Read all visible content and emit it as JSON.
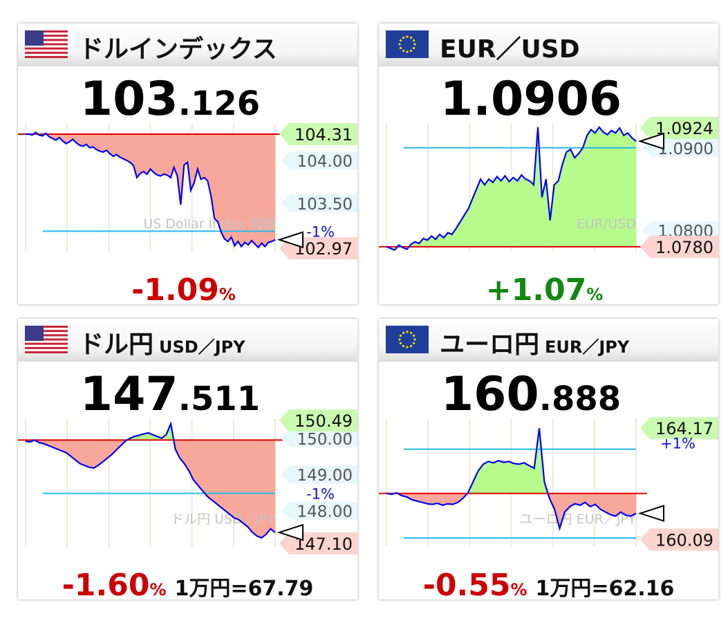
{
  "panels": [
    {
      "title": "ドルインデックス",
      "pair": "",
      "flag": "us",
      "price_big": "103",
      "price_small": ".126",
      "change_num": "-1.09",
      "change_pct": "%",
      "change_dir": "neg",
      "unit_text": "",
      "watermark": "US Dollar Index 現物",
      "fill_mode": "below",
      "colors": {
        "fill": "#f8a89a",
        "line": "#0000ee",
        "ref": "#dd0000"
      },
      "chart_data": {
        "type": "area",
        "title": "ドルインデックス",
        "ylim": [
          102.93,
          104.44
        ],
        "y": [
          104.31,
          104.31,
          104.3,
          104.33,
          104.3,
          104.29,
          104.32,
          104.28,
          104.26,
          104.24,
          104.27,
          104.23,
          104.2,
          104.22,
          104.25,
          104.21,
          104.18,
          104.17,
          104.19,
          104.15,
          104.16,
          104.13,
          104.11,
          104.1,
          104.12,
          104.08,
          104.05,
          104.07,
          104.04,
          104.02,
          104.0,
          103.98,
          103.94,
          103.8,
          103.85,
          103.87,
          103.84,
          103.9,
          103.86,
          103.83,
          103.82,
          103.84,
          103.83,
          103.8,
          103.92,
          103.82,
          103.48,
          103.95,
          103.98,
          103.65,
          103.74,
          103.9,
          103.78,
          103.8,
          103.76,
          103.58,
          103.32,
          103.28,
          103.16,
          103.08,
          103.05,
          103.1,
          103.0,
          103.05,
          102.99,
          103.04,
          103.01,
          103.06,
          103.02,
          102.98,
          103.03,
          102.99,
          103.04,
          103.05,
          103.07
        ],
        "ref_lines": [
          104.31
        ],
        "pct_lines": [
          {
            "label": "-1%",
            "value": 103.17
          }
        ],
        "tick_labels": [
          {
            "text": "104.00",
            "value": 104.0
          },
          {
            "text": "103.50",
            "value": 103.5
          }
        ],
        "labels": {
          "high": "104.31",
          "low": "102.97",
          "marker": "-1%"
        }
      }
    },
    {
      "title": "EUR／USD",
      "pair": "",
      "flag": "eu",
      "price_big": "1.0906",
      "price_small": "",
      "change_num": "+1.07",
      "change_pct": "%",
      "change_dir": "pos",
      "unit_text": "",
      "watermark": "EUR/USD",
      "fill_mode": "above",
      "colors": {
        "fill": "#b6fb8c",
        "line": "#0000ee",
        "ref": "#dd0000"
      },
      "chart_data": {
        "type": "area",
        "title": "EUR／USD",
        "ylim": [
          1.0774,
          1.093
        ],
        "y": [
          1.078,
          1.0778,
          1.0776,
          1.0782,
          1.0779,
          1.0777,
          1.0783,
          1.0786,
          1.0784,
          1.079,
          1.0788,
          1.0793,
          1.0789,
          1.0795,
          1.0791,
          1.0797,
          1.0795,
          1.0802,
          1.081,
          1.0818,
          1.0826,
          1.0838,
          1.085,
          1.0862,
          1.0855,
          1.0862,
          1.0858,
          1.0865,
          1.086,
          1.0866,
          1.0859,
          1.0864,
          1.086,
          1.0867,
          1.0862,
          1.086,
          1.0855,
          1.0925,
          1.084,
          1.0862,
          1.0812,
          1.0855,
          1.086,
          1.088,
          1.0895,
          1.0898,
          1.0888,
          1.0893,
          1.09,
          1.0915,
          1.0922,
          1.0918,
          1.0925,
          1.0919,
          1.0916,
          1.0921,
          1.0918,
          1.0924,
          1.0915,
          1.0918,
          1.0912,
          1.0908
        ],
        "ref_lines": [
          1.078
        ],
        "pct_lines": [
          {
            "label": "",
            "value": 1.09
          }
        ],
        "tick_labels": [
          {
            "text": "1.0900",
            "value": 1.09
          },
          {
            "text": "1.0800",
            "value": 1.08
          }
        ],
        "labels": {
          "high": "1.0924",
          "low": "1.0780",
          "marker": ""
        }
      }
    },
    {
      "title": "ドル円",
      "pair": "USD／JPY",
      "flag": "us",
      "price_big": "147",
      "price_small": ".511",
      "change_num": "-1.60",
      "change_pct": "%",
      "change_dir": "neg",
      "unit_text": "1万円=67.79",
      "watermark": "ドル円 USD／JPY",
      "fill_mode": "both",
      "colors": {
        "fill_up": "#b6fb8c",
        "fill_down": "#f8a89a",
        "line": "#0000ee",
        "ref": "#dd0000"
      },
      "chart_data": {
        "type": "area",
        "title": "ドル円",
        "ylim": [
          147.0,
          150.55
        ],
        "y": [
          149.92,
          149.9,
          149.95,
          149.88,
          149.85,
          149.8,
          149.75,
          149.7,
          149.65,
          149.6,
          149.5,
          149.4,
          149.3,
          149.25,
          149.2,
          149.18,
          149.25,
          149.35,
          149.45,
          149.55,
          149.68,
          149.8,
          149.92,
          150.0,
          150.05,
          150.08,
          150.12,
          150.15,
          150.1,
          150.05,
          150.0,
          150.1,
          150.4,
          149.7,
          149.45,
          149.3,
          149.1,
          148.85,
          148.7,
          148.55,
          148.4,
          148.3,
          148.2,
          148.1,
          148.0,
          147.9,
          147.8,
          147.75,
          147.65,
          147.55,
          147.4,
          147.3,
          147.25,
          147.35,
          147.5,
          147.4
        ],
        "ref_lines": [
          149.95
        ],
        "pct_lines": [
          {
            "label": "-1%",
            "value": 148.48
          }
        ],
        "tick_labels": [
          {
            "text": "150.00",
            "value": 150.0
          },
          {
            "text": "149.00",
            "value": 149.0
          },
          {
            "text": "148.00",
            "value": 148.0
          }
        ],
        "labels": {
          "high": "150.49",
          "low": "147.10",
          "marker": "-1%"
        }
      }
    },
    {
      "title": "ユーロ円",
      "pair": "EUR／JPY",
      "flag": "eu",
      "price_big": "160",
      "price_small": ".888",
      "change_num": "-0.55",
      "change_pct": "%",
      "change_dir": "neg",
      "unit_text": "1万円=62.16",
      "watermark": "ユーロ円 EUR／JPY",
      "fill_mode": "both",
      "colors": {
        "fill_up": "#b6fb8c",
        "fill_down": "#f8a89a",
        "line": "#0000ee",
        "ref": "#dd0000"
      },
      "chart_data": {
        "type": "area",
        "title": "ユーロ円",
        "ylim": [
          159.82,
          164.53
        ],
        "y": [
          161.78,
          161.75,
          161.8,
          161.7,
          161.65,
          161.55,
          161.5,
          161.45,
          161.4,
          161.38,
          161.42,
          161.35,
          161.4,
          161.38,
          161.45,
          161.6,
          161.8,
          162.2,
          162.6,
          162.85,
          162.95,
          162.9,
          162.98,
          162.92,
          162.95,
          162.88,
          162.85,
          162.9,
          162.8,
          162.7,
          164.17,
          162.2,
          161.6,
          161.2,
          160.5,
          161.1,
          161.3,
          161.4,
          161.35,
          161.45,
          161.3,
          161.38,
          161.2,
          161.1,
          161.0,
          160.95,
          161.1,
          160.98,
          160.95,
          161.05
        ],
        "ref_lines": [
          161.78
        ],
        "pct_lines": [
          {
            "label": "+1%",
            "value": 163.4
          },
          {
            "label": "",
            "value": 160.15
          }
        ],
        "tick_labels": [],
        "labels": {
          "high": "164.17",
          "low": "160.09",
          "marker": "+1%"
        }
      }
    }
  ]
}
